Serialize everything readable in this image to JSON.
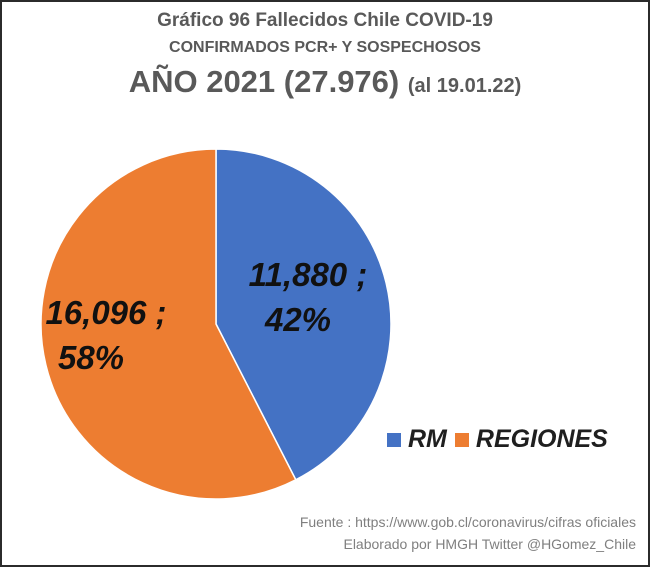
{
  "chart_data": {
    "type": "pie",
    "title": "Gráfico 96 Fallecidos Chile COVID-19",
    "subtitle": "CONFIRMADOS PCR+ Y  SOSPECHOSOS",
    "heading_main": "AÑO 2021 (27.976)",
    "heading_note": "(al 19.01.22)",
    "categories": [
      "RM",
      "REGIONES"
    ],
    "values": [
      11880,
      16096
    ],
    "percents": [
      42,
      58
    ],
    "colors": [
      "#4472C4",
      "#ED7D31"
    ],
    "data_labels": [
      {
        "line1": "11,880 ;",
        "line2": "42%"
      },
      {
        "line1": "16,096 ;",
        "line2": "58%"
      }
    ],
    "legend_position": "bottom-right",
    "source_lines": [
      "Fuente : https://www.gob.cl/coronavirus/cifras oficiales",
      "Elaborado por HMGH  Twitter @HGomez_Chile"
    ]
  }
}
